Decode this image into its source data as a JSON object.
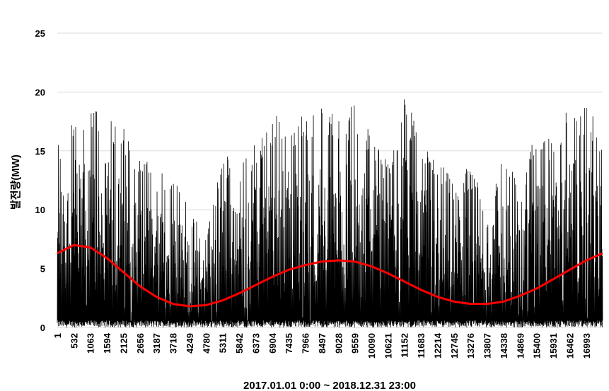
{
  "chart_data": {
    "type": "line",
    "title": "",
    "xlabel": "2017.01.01 0:00 ~ 2018.12.31 23:00",
    "ylabel": "발전량(MW)",
    "ylim": [
      0,
      25
    ],
    "yticks": [
      0,
      5,
      10,
      15,
      20,
      25
    ],
    "xlim": [
      1,
      17520
    ],
    "xticks": [
      1,
      532,
      1063,
      1594,
      2125,
      2656,
      3187,
      3718,
      4249,
      4780,
      5311,
      5842,
      6373,
      6904,
      7435,
      7966,
      8497,
      9028,
      9559,
      10090,
      10621,
      11152,
      11683,
      12214,
      12745,
      13276,
      13807,
      14338,
      14869,
      15400,
      15931,
      16462,
      16993
    ],
    "grid": "horizontal",
    "legend": "none",
    "colors": {
      "series": "#000000",
      "trend": "#ff0000",
      "grid": "#d9d9d9"
    },
    "series": [
      {
        "style": "hourly-generation",
        "envelope_x": [
          1,
          532,
          1063,
          1594,
          2125,
          2656,
          3187,
          3718,
          4249,
          4780,
          5311,
          5842,
          6373,
          6904,
          7435,
          7966,
          8497,
          9028,
          9559,
          10090,
          10621,
          11152,
          11683,
          12214,
          12745,
          13276,
          13807,
          14338,
          14869,
          15400,
          15931,
          16462,
          16993,
          17520
        ],
        "envelope_max": [
          16,
          19,
          19,
          19,
          17,
          15,
          13,
          14,
          10,
          8,
          15,
          14,
          16,
          18,
          18,
          18,
          19,
          18,
          19,
          17,
          14,
          20,
          16,
          15,
          12,
          14,
          10,
          15,
          12,
          17,
          16,
          19,
          19,
          17
        ]
      },
      {
        "style": "trend",
        "x": [
          1,
          532,
          1063,
          1594,
          2125,
          2656,
          3187,
          3718,
          4249,
          4780,
          5311,
          5842,
          6373,
          6904,
          7435,
          7966,
          8497,
          9028,
          9559,
          10090,
          10621,
          11152,
          11683,
          12214,
          12745,
          13276,
          13807,
          14338,
          14869,
          15400,
          15931,
          16462,
          16993,
          17520
        ],
        "values": [
          6.3,
          7.0,
          6.8,
          5.9,
          4.7,
          3.5,
          2.6,
          2.0,
          1.8,
          1.9,
          2.3,
          2.9,
          3.6,
          4.3,
          4.9,
          5.3,
          5.6,
          5.7,
          5.6,
          5.2,
          4.6,
          3.9,
          3.2,
          2.6,
          2.2,
          2.0,
          2.0,
          2.2,
          2.7,
          3.3,
          4.1,
          4.9,
          5.7,
          6.3
        ]
      }
    ]
  }
}
